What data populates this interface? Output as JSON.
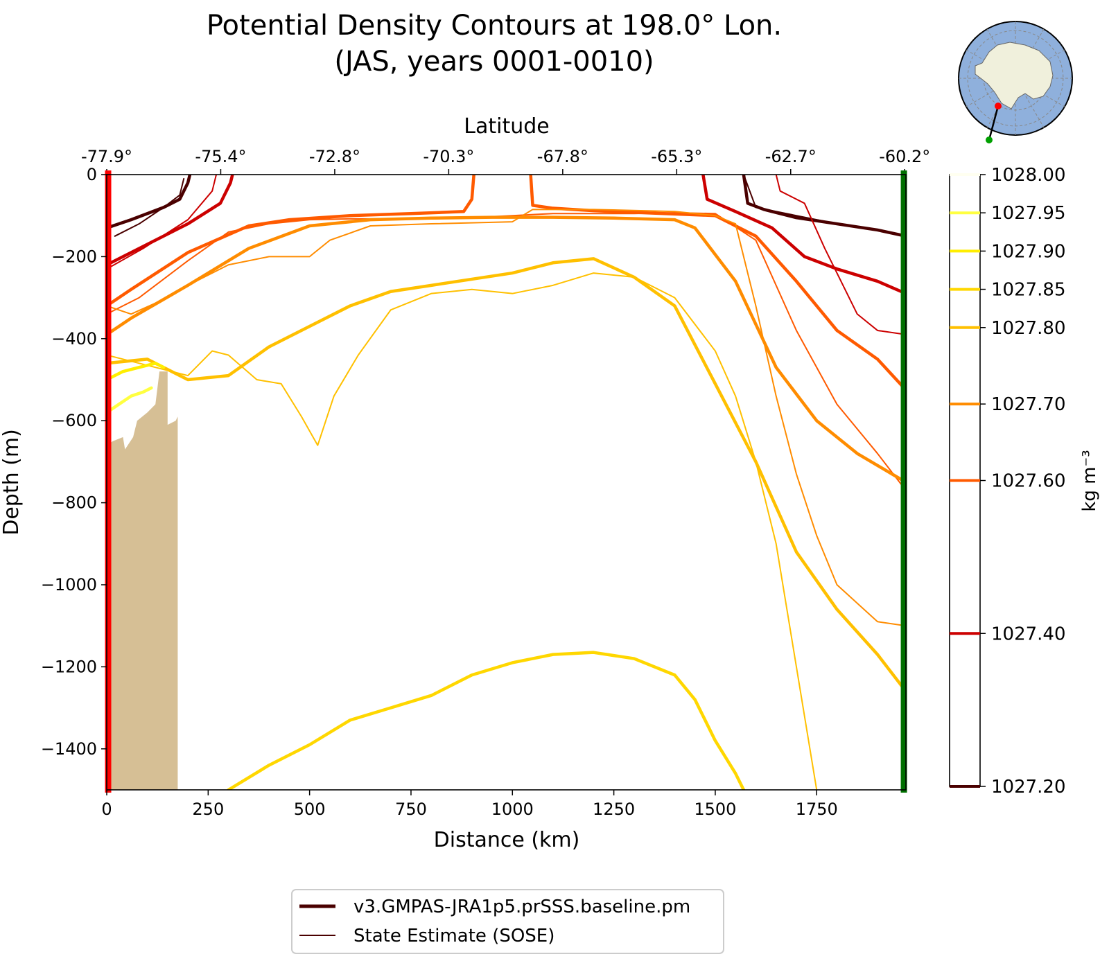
{
  "chart_data": {
    "type": "line",
    "title_line1": "Potential Density Contours at 198.0° Lon.",
    "title_line2": "(JAS, years 0001-0010)",
    "xlabel": "Distance (km)",
    "ylabel": "Depth (m)",
    "top_xlabel": "Latitude",
    "xlim": [
      0,
      1970
    ],
    "ylim": [
      -1500,
      0
    ],
    "x_ticks": [
      "0",
      "250",
      "500",
      "750",
      "1000",
      "1250",
      "1500",
      "1750"
    ],
    "x_tick_values": [
      0,
      250,
      500,
      750,
      1000,
      1250,
      1500,
      1750
    ],
    "y_ticks": [
      "0",
      "−200",
      "−400",
      "−600",
      "−800",
      "−1000",
      "−1200",
      "−1400"
    ],
    "y_tick_values": [
      0,
      -200,
      -400,
      -600,
      -800,
      -1000,
      -1200,
      -1400
    ],
    "lat_ticks": [
      "-77.9°",
      "-75.4°",
      "-72.8°",
      "-70.3°",
      "-67.8°",
      "-65.3°",
      "-62.7°",
      "-60.2°"
    ],
    "lat_tick_distance": [
      0,
      281,
      562,
      843,
      1124,
      1405,
      1686,
      1967
    ],
    "colorbar": {
      "label": "kg m⁻³",
      "min": 1027.2,
      "max": 1028.0,
      "ticks": [
        "1028.00",
        "1027.95",
        "1027.90",
        "1027.85",
        "1027.80",
        "1027.70",
        "1027.60",
        "1027.40",
        "1027.20"
      ],
      "tick_values": [
        1028.0,
        1027.95,
        1027.9,
        1027.85,
        1027.8,
        1027.7,
        1027.6,
        1027.4,
        1027.2
      ],
      "colors": [
        "#fffff0",
        "#ffff40",
        "#ffee00",
        "#ffd700",
        "#ffc000",
        "#ff8c00",
        "#ff5a00",
        "#cc0000",
        "#4a0000"
      ]
    },
    "legend": [
      {
        "label": "v3.GMPAS-JRA1p5.prSSS.baseline.pm",
        "color": "#4a0000",
        "width": 5
      },
      {
        "label": "State Estimate (SOSE)",
        "color": "#4a0000",
        "width": 2
      }
    ],
    "section_start_color": "#ff0000",
    "section_end_color": "#007000",
    "bathymetry_color": "#d6bf95",
    "bathymetry": [
      [
        0,
        -1500
      ],
      [
        0,
        -660
      ],
      [
        15,
        -650
      ],
      [
        40,
        -640
      ],
      [
        45,
        -670
      ],
      [
        65,
        -640
      ],
      [
        75,
        -600
      ],
      [
        100,
        -580
      ],
      [
        120,
        -560
      ],
      [
        130,
        -480
      ],
      [
        145,
        -480
      ],
      [
        150,
        -480
      ],
      [
        150,
        -610
      ],
      [
        170,
        -600
      ],
      [
        175,
        -590
      ],
      [
        175,
        -1500
      ]
    ],
    "series": [
      {
        "name": "",
        "level": 1027.2,
        "kind": "model",
        "color": "#4a0000",
        "x": [
          0,
          60,
          140,
          180,
          200,
          205
        ],
        "y": [
          -130,
          -110,
          -80,
          -60,
          -20,
          0
        ]
      },
      {
        "name": "",
        "level": 1027.2,
        "kind": "model",
        "color": "#4a0000",
        "x": [
          1570,
          1580,
          1620,
          1700,
          1800,
          1900,
          1970
        ],
        "y": [
          0,
          -70,
          -85,
          -105,
          -120,
          -135,
          -150
        ]
      },
      {
        "name": "",
        "level": 1027.2,
        "kind": "sose",
        "color": "#4a0000",
        "x": [
          20,
          80,
          140,
          180,
          190
        ],
        "y": [
          -150,
          -120,
          -80,
          -50,
          -10
        ]
      },
      {
        "name": "",
        "level": 1027.2,
        "kind": "sose",
        "color": "#4a0000",
        "x": [
          1570,
          1600,
          1700,
          1800,
          1900,
          1970
        ],
        "y": [
          0,
          -80,
          -100,
          -120,
          -135,
          -150
        ]
      },
      {
        "name": "",
        "level": 1027.4,
        "kind": "model",
        "color": "#cc0000",
        "x": [
          0,
          100,
          200,
          280,
          305,
          310
        ],
        "y": [
          -220,
          -170,
          -120,
          -70,
          -20,
          0
        ]
      },
      {
        "name": "",
        "level": 1027.4,
        "kind": "model",
        "color": "#cc0000",
        "x": [
          1470,
          1480,
          1550,
          1640,
          1720,
          1800,
          1900,
          1970
        ],
        "y": [
          0,
          -60,
          -90,
          -130,
          -200,
          -230,
          -260,
          -290
        ]
      },
      {
        "name": "",
        "level": 1027.4,
        "kind": "sose",
        "color": "#cc0000",
        "x": [
          0,
          90,
          200,
          260,
          270
        ],
        "y": [
          -230,
          -180,
          -110,
          -40,
          0
        ]
      },
      {
        "name": "",
        "level": 1027.4,
        "kind": "sose",
        "color": "#cc0000",
        "x": [
          1650,
          1660,
          1720,
          1770,
          1800,
          1850,
          1900,
          1970
        ],
        "y": [
          0,
          -40,
          -70,
          -180,
          -240,
          -340,
          -380,
          -390
        ]
      },
      {
        "name": "",
        "level": 1027.6,
        "kind": "model",
        "color": "#ff5a00",
        "x": [
          0,
          60,
          200,
          350,
          450,
          600,
          750,
          880,
          900,
          905
        ],
        "y": [
          -320,
          -280,
          -190,
          -125,
          -110,
          -100,
          -95,
          -90,
          -60,
          0
        ]
      },
      {
        "name": "",
        "level": 1027.6,
        "kind": "model",
        "color": "#ff5a00",
        "x": [
          1045,
          1050,
          1100,
          1200,
          1300,
          1400,
          1500,
          1600,
          1700,
          1800,
          1900,
          1970
        ],
        "y": [
          0,
          -75,
          -82,
          -88,
          -92,
          -96,
          -100,
          -150,
          -260,
          -380,
          -450,
          -525
        ]
      },
      {
        "name": "",
        "level": 1027.6,
        "kind": "sose",
        "color": "#ff5a00",
        "x": [
          0,
          80,
          200,
          300,
          400,
          500,
          600,
          700,
          800,
          900,
          1000,
          1100,
          1200,
          1300,
          1400,
          1500,
          1600,
          1700,
          1800,
          1900,
          1970
        ],
        "y": [
          -340,
          -300,
          -210,
          -140,
          -120,
          -110,
          -108,
          -108,
          -108,
          -105,
          -100,
          -95,
          -95,
          -95,
          -93,
          -95,
          -160,
          -380,
          -560,
          -680,
          -770
        ]
      },
      {
        "name": "",
        "level": 1027.7,
        "kind": "model",
        "color": "#ff8c00",
        "x": [
          0,
          60,
          200,
          350,
          500,
          650,
          800,
          950,
          1100,
          1250,
          1400,
          1450,
          1550,
          1650,
          1750,
          1850,
          1970
        ],
        "y": [
          -390,
          -350,
          -270,
          -180,
          -125,
          -110,
          -106,
          -104,
          -104,
          -106,
          -110,
          -130,
          -260,
          -470,
          -600,
          -680,
          -750
        ]
      },
      {
        "name": "",
        "level": 1027.7,
        "kind": "sose",
        "color": "#ff8c00",
        "x": [
          0,
          60,
          150,
          200,
          300,
          400,
          500,
          550,
          650,
          800,
          1000,
          1050,
          1200,
          1400,
          1500,
          1550,
          1600,
          1650,
          1700,
          1750,
          1800,
          1900,
          1970
        ],
        "y": [
          -320,
          -340,
          -300,
          -270,
          -220,
          -200,
          -200,
          -160,
          -125,
          -120,
          -115,
          -85,
          -85,
          -90,
          -100,
          -120,
          -320,
          -540,
          -730,
          -880,
          -1000,
          -1090,
          -1100
        ]
      },
      {
        "name": "",
        "level": 1027.8,
        "kind": "model",
        "color": "#ffc000",
        "x": [
          0,
          100,
          200,
          300,
          400,
          500,
          600,
          700,
          800,
          900,
          1000,
          1100,
          1200,
          1300,
          1400,
          1500,
          1600,
          1700,
          1800,
          1900,
          1970
        ],
        "y": [
          -460,
          -450,
          -500,
          -490,
          -420,
          -370,
          -320,
          -285,
          -270,
          -255,
          -240,
          -215,
          -205,
          -250,
          -320,
          -510,
          -700,
          -920,
          -1060,
          -1170,
          -1260
        ]
      },
      {
        "name": "",
        "level": 1027.8,
        "kind": "sose",
        "color": "#ffc000",
        "x": [
          0,
          80,
          200,
          260,
          300,
          370,
          430,
          480,
          520,
          560,
          620,
          700,
          800,
          900,
          1000,
          1100,
          1200,
          1300,
          1400,
          1500,
          1550,
          1600,
          1650,
          1700,
          1750
        ],
        "y": [
          -440,
          -460,
          -490,
          -430,
          -440,
          -500,
          -510,
          -590,
          -660,
          -540,
          -440,
          -330,
          -290,
          -280,
          -290,
          -270,
          -240,
          -250,
          -300,
          -430,
          -540,
          -700,
          -900,
          -1200,
          -1500
        ]
      },
      {
        "name": "",
        "level": 1027.85,
        "kind": "model",
        "color": "#ffd700",
        "x": [
          300,
          400,
          500,
          600,
          700,
          800,
          900,
          1000,
          1100,
          1200,
          1300,
          1400,
          1450,
          1500,
          1550,
          1570
        ],
        "y": [
          -1500,
          -1440,
          -1390,
          -1330,
          -1300,
          -1270,
          -1220,
          -1190,
          -1170,
          -1165,
          -1180,
          -1220,
          -1280,
          -1380,
          -1460,
          -1500
        ]
      },
      {
        "name": "",
        "level": 1027.9,
        "kind": "model",
        "color": "#ffee00",
        "x": [
          0,
          40,
          80,
          120,
          140
        ],
        "y": [
          -500,
          -480,
          -470,
          -460,
          -470
        ]
      },
      {
        "name": "",
        "level": 1027.95,
        "kind": "model",
        "color": "#ffff40",
        "x": [
          0,
          30,
          60,
          90,
          110
        ],
        "y": [
          -580,
          -560,
          -540,
          -530,
          -520
        ]
      }
    ]
  },
  "inset_map": {
    "ocean_color": "#8fb0dc",
    "land_color": "#f0f0dc",
    "marker_start_color": "#ff0000",
    "marker_end_color": "#00a000"
  }
}
